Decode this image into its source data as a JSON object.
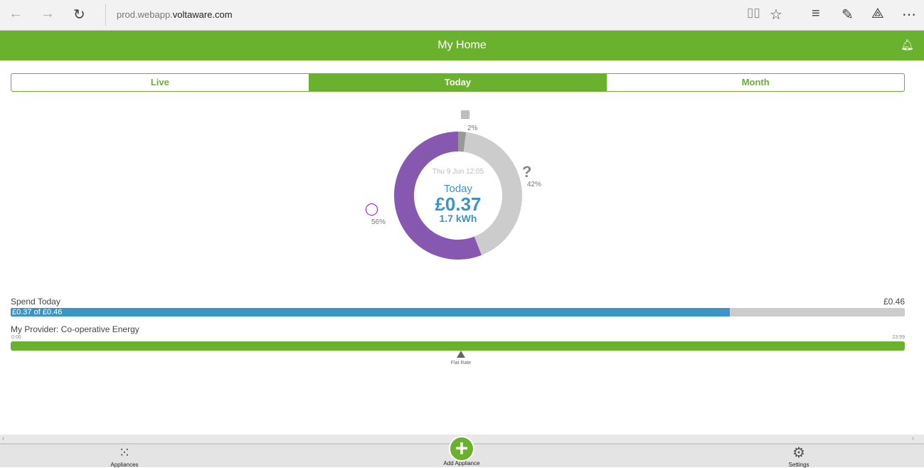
{
  "browser": {
    "url_prefix": "prod.webapp.",
    "url_domain": "voltaware.com"
  },
  "header": {
    "title": "My Home"
  },
  "tabs": [
    {
      "label": "Live",
      "active": false
    },
    {
      "label": "Today",
      "active": true
    },
    {
      "label": "Month",
      "active": false
    }
  ],
  "chart_data": {
    "type": "pie",
    "subtype": "donut",
    "segments": [
      {
        "icon": "grid-icon",
        "label": "2%",
        "value": 2,
        "color": "#999999"
      },
      {
        "icon": "question-icon",
        "label": "42%",
        "value": 42,
        "color": "#cccccc"
      },
      {
        "icon": "ghost-icon",
        "label": "56%",
        "value": 56,
        "color": "#8658b0"
      }
    ],
    "center": {
      "datetime": "Thu 9 Jun 12:05",
      "period": "Today",
      "cost": "£0.37",
      "energy": "1.7 kWh"
    }
  },
  "spend": {
    "label": "Spend Today",
    "max": "£0.46",
    "bar_text": "£0.37  of  £0.46",
    "progress": 0.804
  },
  "provider": {
    "label": "My Provider: Co-operative Energy",
    "start": "0:00",
    "end": "23:59",
    "tariff": "Flat Rate"
  },
  "bottom_nav": {
    "appliances": "Appliances",
    "add": "Add Appliance",
    "settings": "Settings"
  },
  "colors": {
    "accent": "#6ab22e",
    "blue": "#3a95c4",
    "purple": "#8658b0"
  }
}
